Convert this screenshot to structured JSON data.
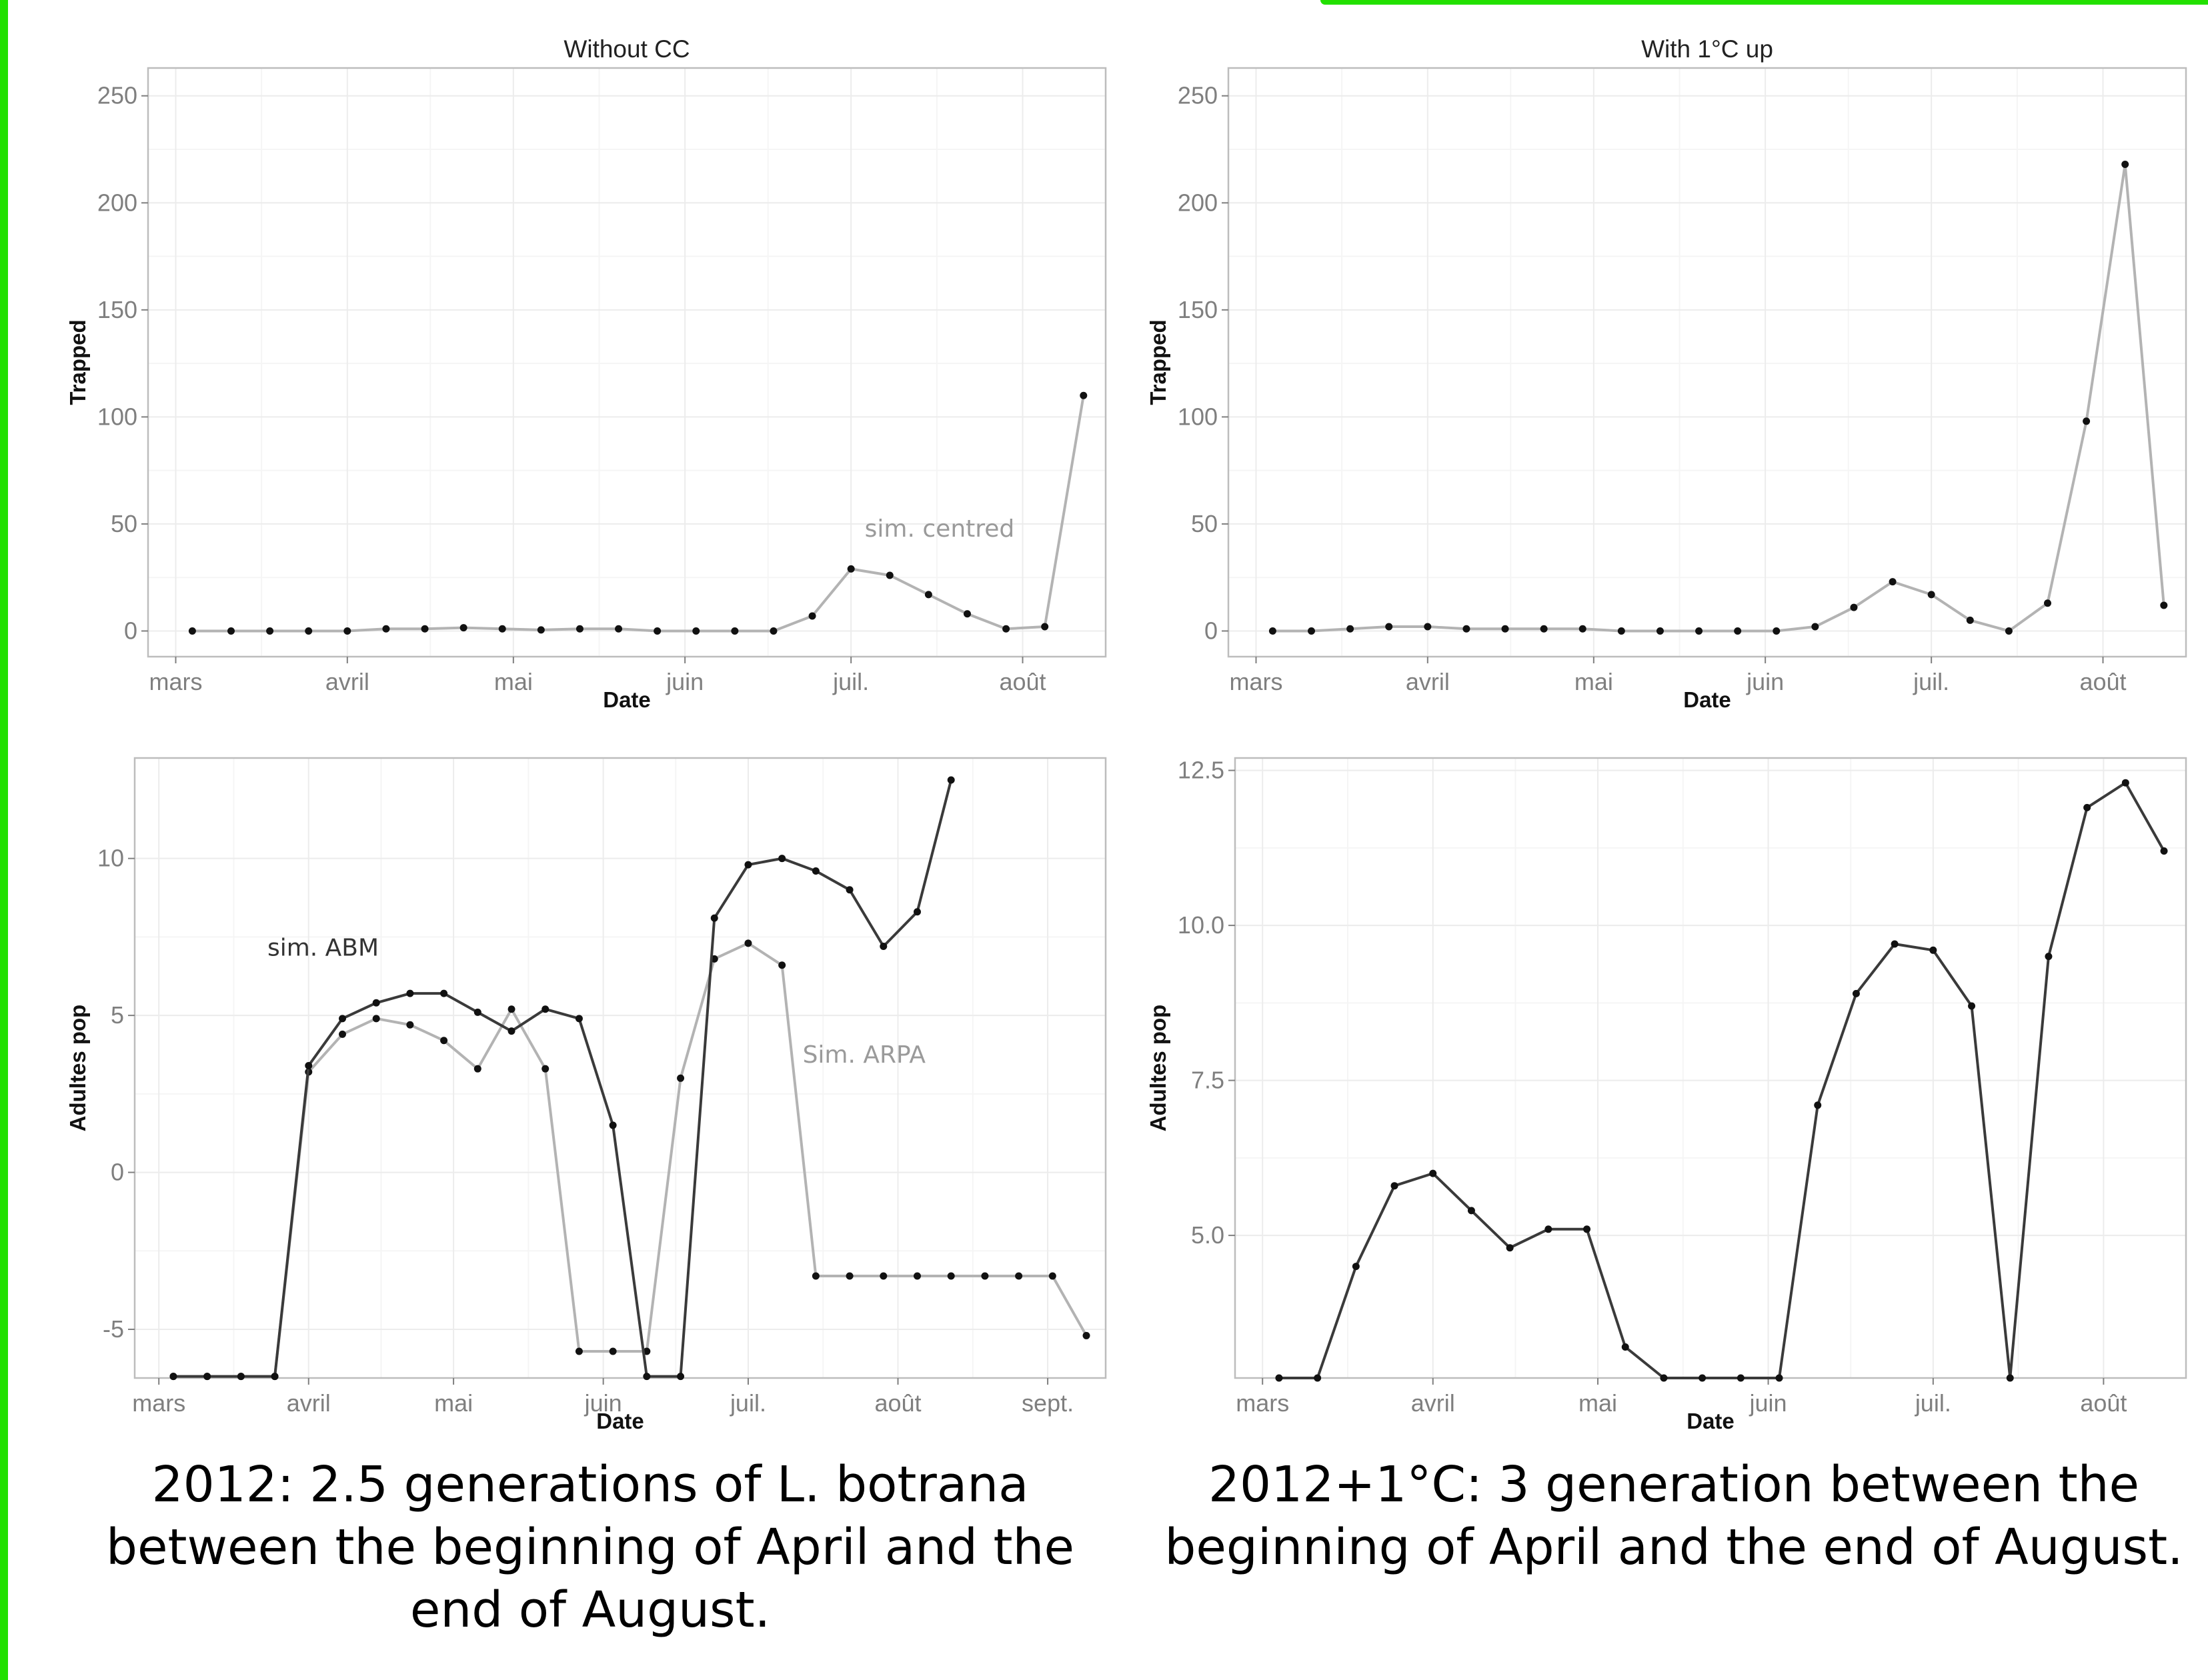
{
  "colors": {
    "frame_green": "#22e000",
    "grid": "#ececec",
    "panel_border": "#bdbdbd",
    "tick_text": "#7f7f7f",
    "series_light": "#b3b3b3",
    "series_dark": "#3a3a3a",
    "marker": "#111111"
  },
  "chart_data": [
    {
      "id": "p1",
      "type": "line",
      "title": "Without CC",
      "xlabel": "Date",
      "ylabel": "Trapped",
      "x_axis": "date",
      "xlim": [
        "2012-02-25",
        "2012-08-16"
      ],
      "ylim": [
        -12,
        263
      ],
      "x_ticks": [
        {
          "date": "2012-03-01",
          "label": "mars"
        },
        {
          "date": "2012-04-01",
          "label": "avril"
        },
        {
          "date": "2012-05-01",
          "label": "mai"
        },
        {
          "date": "2012-06-01",
          "label": "juin"
        },
        {
          "date": "2012-07-01",
          "label": "juil."
        },
        {
          "date": "2012-08-01",
          "label": "août"
        }
      ],
      "y_ticks": [
        {
          "value": 0,
          "label": "0"
        },
        {
          "value": 50,
          "label": "50"
        },
        {
          "value": 100,
          "label": "100"
        },
        {
          "value": 150,
          "label": "150"
        },
        {
          "value": 200,
          "label": "200"
        },
        {
          "value": 250,
          "label": "250"
        }
      ],
      "grid": true,
      "series": [
        {
          "color": "#b3b3b3",
          "x": [
            "2012-03-04",
            "2012-03-11",
            "2012-03-18",
            "2012-03-25",
            "2012-04-01",
            "2012-04-08",
            "2012-04-15",
            "2012-04-22",
            "2012-04-29",
            "2012-05-06",
            "2012-05-13",
            "2012-05-20",
            "2012-05-27",
            "2012-06-03",
            "2012-06-10",
            "2012-06-17",
            "2012-06-24",
            "2012-07-01",
            "2012-07-08",
            "2012-07-15",
            "2012-07-22",
            "2012-07-29",
            "2012-08-05",
            "2012-08-12"
          ],
          "y": [
            0,
            0,
            0,
            0,
            0,
            1,
            1,
            1.5,
            1,
            0.5,
            1,
            1,
            0,
            0,
            0,
            0,
            7,
            29,
            26,
            17,
            8,
            1,
            2,
            110
          ]
        }
      ],
      "annotations": [
        {
          "text": "sim. centred",
          "date": "2012-07-17",
          "value": 44,
          "color": "#9a9a9a"
        }
      ]
    },
    {
      "id": "p2",
      "type": "line",
      "title": "With 1°C up",
      "xlabel": "Date",
      "ylabel": "Trapped",
      "x_axis": "date",
      "xlim": [
        "2012-02-25",
        "2012-08-16"
      ],
      "ylim": [
        -12,
        263
      ],
      "x_ticks": [
        {
          "date": "2012-03-01",
          "label": "mars"
        },
        {
          "date": "2012-04-01",
          "label": "avril"
        },
        {
          "date": "2012-05-01",
          "label": "mai"
        },
        {
          "date": "2012-06-01",
          "label": "juin"
        },
        {
          "date": "2012-07-01",
          "label": "juil."
        },
        {
          "date": "2012-08-01",
          "label": "août"
        }
      ],
      "y_ticks": [
        {
          "value": 0,
          "label": "0"
        },
        {
          "value": 50,
          "label": "50"
        },
        {
          "value": 100,
          "label": "100"
        },
        {
          "value": 150,
          "label": "150"
        },
        {
          "value": 200,
          "label": "200"
        },
        {
          "value": 250,
          "label": "250"
        }
      ],
      "grid": true,
      "series": [
        {
          "color": "#b3b3b3",
          "x": [
            "2012-03-04",
            "2012-03-11",
            "2012-03-18",
            "2012-03-25",
            "2012-04-01",
            "2012-04-08",
            "2012-04-15",
            "2012-04-22",
            "2012-04-29",
            "2012-05-06",
            "2012-05-13",
            "2012-05-20",
            "2012-05-27",
            "2012-06-03",
            "2012-06-10",
            "2012-06-17",
            "2012-06-24",
            "2012-07-01",
            "2012-07-08",
            "2012-07-15",
            "2012-07-22",
            "2012-07-29",
            "2012-08-05",
            "2012-08-12"
          ],
          "y": [
            0,
            0,
            1,
            2,
            2,
            1,
            1,
            1,
            1,
            0,
            0,
            0,
            0,
            0,
            2,
            11,
            23,
            17,
            5,
            0,
            13,
            98,
            218,
            12
          ]
        }
      ]
    },
    {
      "id": "p3",
      "type": "line",
      "title": "",
      "xlabel": "Date",
      "ylabel": "Adultes pop",
      "x_axis": "date",
      "xlim": [
        "2012-02-25",
        "2012-09-13"
      ],
      "ylim": [
        -6.55,
        13.2
      ],
      "x_ticks": [
        {
          "date": "2012-03-01",
          "label": "mars"
        },
        {
          "date": "2012-04-01",
          "label": "avril"
        },
        {
          "date": "2012-05-01",
          "label": "mai"
        },
        {
          "date": "2012-06-01",
          "label": "juin"
        },
        {
          "date": "2012-07-01",
          "label": "juil."
        },
        {
          "date": "2012-08-01",
          "label": "août"
        },
        {
          "date": "2012-09-01",
          "label": "sept."
        }
      ],
      "y_ticks": [
        {
          "value": -5,
          "label": "-5"
        },
        {
          "value": 0,
          "label": "0"
        },
        {
          "value": 5,
          "label": "5"
        },
        {
          "value": 10,
          "label": "10"
        }
      ],
      "grid": true,
      "series": [
        {
          "color": "#b3b3b3",
          "x": [
            "2012-03-04",
            "2012-03-11",
            "2012-03-18",
            "2012-03-25",
            "2012-04-01",
            "2012-04-08",
            "2012-04-15",
            "2012-04-22",
            "2012-04-29",
            "2012-05-06",
            "2012-05-13",
            "2012-05-20",
            "2012-05-27",
            "2012-06-03",
            "2012-06-10",
            "2012-06-17",
            "2012-06-24",
            "2012-07-01",
            "2012-07-08",
            "2012-07-15",
            "2012-07-22",
            "2012-07-29",
            "2012-08-05",
            "2012-08-12",
            "2012-08-19",
            "2012-08-26",
            "2012-09-02",
            "2012-09-09"
          ],
          "y": [
            -6.5,
            -6.5,
            -6.5,
            -6.5,
            3.2,
            4.4,
            4.9,
            4.7,
            4.2,
            3.3,
            5.2,
            3.3,
            -5.7,
            -5.7,
            -5.7,
            3.0,
            6.8,
            7.3,
            6.6,
            -3.3,
            -3.3,
            -3.3,
            -3.3,
            -3.3,
            -3.3,
            -3.3,
            -3.3,
            -5.2
          ]
        },
        {
          "color": "#3a3a3a",
          "x": [
            "2012-03-04",
            "2012-03-11",
            "2012-03-18",
            "2012-03-25",
            "2012-04-01",
            "2012-04-08",
            "2012-04-15",
            "2012-04-22",
            "2012-04-29",
            "2012-05-06",
            "2012-05-13",
            "2012-05-20",
            "2012-05-27",
            "2012-06-03",
            "2012-06-10",
            "2012-06-17",
            "2012-06-24",
            "2012-07-01",
            "2012-07-08",
            "2012-07-15",
            "2012-07-22",
            "2012-07-29",
            "2012-08-05",
            "2012-08-12"
          ],
          "y": [
            -6.5,
            -6.5,
            -6.5,
            -6.5,
            3.4,
            4.9,
            5.4,
            5.7,
            5.7,
            5.1,
            4.5,
            5.2,
            4.9,
            1.5,
            -6.5,
            -6.5,
            8.1,
            9.8,
            10.0,
            9.6,
            9.0,
            7.2,
            8.3,
            12.5
          ]
        }
      ],
      "annotations": [
        {
          "text": "sim. ABM",
          "date": "2012-04-04",
          "value": 6.9,
          "color": "#333333"
        },
        {
          "text": "Sim. ARPA",
          "date": "2012-07-25",
          "value": 3.5,
          "color": "#9a9a9a"
        }
      ]
    },
    {
      "id": "p4",
      "type": "line",
      "title": "",
      "xlabel": "Date",
      "ylabel": "Adultes pop",
      "x_axis": "date",
      "xlim": [
        "2012-02-25",
        "2012-08-16"
      ],
      "ylim": [
        2.7,
        12.7
      ],
      "x_ticks": [
        {
          "date": "2012-03-01",
          "label": "mars"
        },
        {
          "date": "2012-04-01",
          "label": "avril"
        },
        {
          "date": "2012-05-01",
          "label": "mai"
        },
        {
          "date": "2012-06-01",
          "label": "juin"
        },
        {
          "date": "2012-07-01",
          "label": "juil."
        },
        {
          "date": "2012-08-01",
          "label": "août"
        }
      ],
      "y_ticks": [
        {
          "value": 5.0,
          "label": "5.0"
        },
        {
          "value": 7.5,
          "label": "7.5"
        },
        {
          "value": 10.0,
          "label": "10.0"
        },
        {
          "value": 12.5,
          "label": "12.5"
        }
      ],
      "grid": true,
      "series": [
        {
          "color": "#3a3a3a",
          "x": [
            "2012-03-04",
            "2012-03-11",
            "2012-03-18",
            "2012-03-25",
            "2012-04-01",
            "2012-04-08",
            "2012-04-15",
            "2012-04-22",
            "2012-04-29",
            "2012-05-06",
            "2012-05-13",
            "2012-05-20",
            "2012-05-27",
            "2012-06-03",
            "2012-06-10",
            "2012-06-17",
            "2012-06-24",
            "2012-07-01",
            "2012-07-08",
            "2012-07-15",
            "2012-07-22",
            "2012-07-29",
            "2012-08-05",
            "2012-08-12"
          ],
          "y": [
            2.7,
            2.7,
            4.5,
            5.8,
            6.0,
            5.4,
            4.8,
            5.1,
            5.1,
            3.2,
            2.7,
            2.7,
            2.7,
            2.7,
            7.1,
            8.9,
            9.7,
            9.6,
            8.7,
            2.7,
            9.5,
            11.9,
            12.3,
            11.2
          ]
        }
      ]
    }
  ],
  "captions": {
    "left": [
      "2012: 2.5 generations of L. botrana",
      "between the beginning of April and the",
      "end of August."
    ],
    "right": [
      "2012+1°C: 3 generation between the",
      "beginning of April and the end of August."
    ]
  }
}
